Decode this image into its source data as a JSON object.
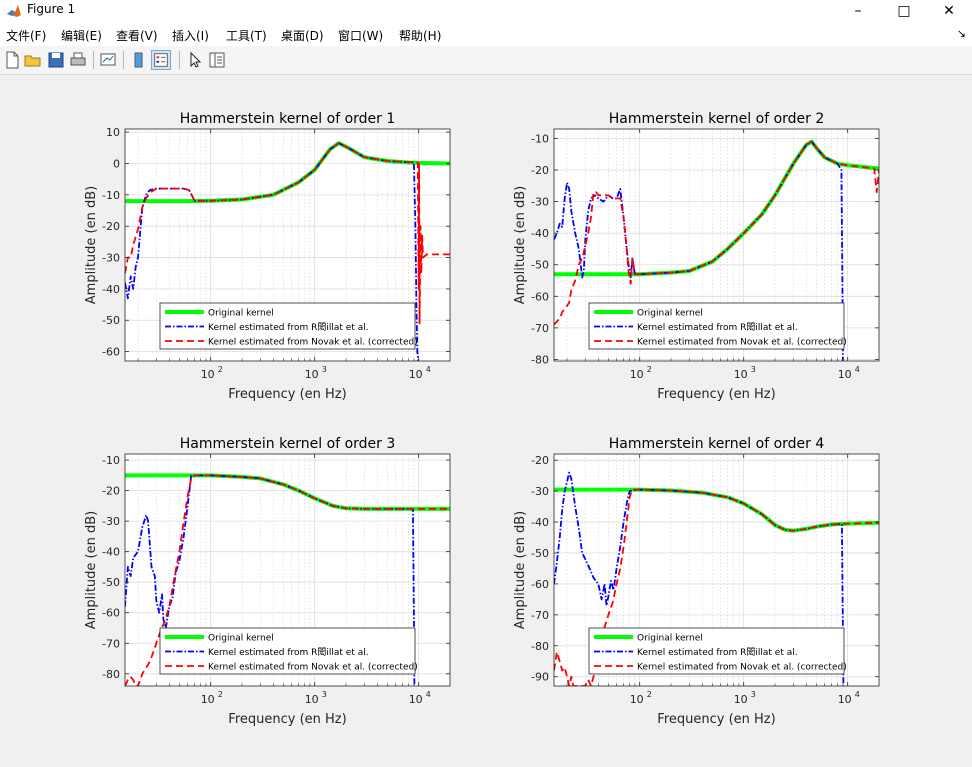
{
  "window": {
    "title": "Figure 1",
    "minimize": "–",
    "maximize": "□",
    "close": "✕"
  },
  "menu": [
    {
      "label": "文件(F)",
      "name": "menu-file"
    },
    {
      "label": "编辑(E)",
      "name": "menu-edit"
    },
    {
      "label": "查看(V)",
      "name": "menu-view"
    },
    {
      "label": "插入(I)",
      "name": "menu-insert"
    },
    {
      "label": "工具(T)",
      "name": "menu-tools"
    },
    {
      "label": "桌面(D)",
      "name": "menu-desktop"
    },
    {
      "label": "窗口(W)",
      "name": "menu-window"
    },
    {
      "label": "帮助(H)",
      "name": "menu-help"
    }
  ],
  "menu_overflow_icon": "chevron-down-icon",
  "toolbar": [
    {
      "name": "new-figure-icon"
    },
    {
      "name": "open-file-icon"
    },
    {
      "name": "save-icon"
    },
    {
      "name": "print-icon"
    },
    {
      "name": "link-plot-icon"
    },
    {
      "name": "colorbar-icon"
    },
    {
      "name": "legend-icon",
      "active": true
    },
    {
      "name": "edit-plot-icon"
    },
    {
      "name": "property-inspector-icon"
    }
  ],
  "colors": {
    "original": "#00ff00",
    "rebillat": "#0000ff",
    "novak": "#ff0000",
    "axes_bg": "#ffffff",
    "figure_bg": "#f0f0f0"
  },
  "legend": {
    "original": "Original kernel",
    "rebillat": "Kernel estimated from R閎illat et al.",
    "novak": "Kernel estimated from Novak et al. (corrected)"
  },
  "chart_data": [
    {
      "type": "line",
      "title": "Hammerstein kernel of order 1",
      "xlabel": "Frequency (en Hz)",
      "ylabel": "Amplitude (en dB)",
      "xscale": "log",
      "xlim": [
        15,
        20000
      ],
      "ylim": [
        -63,
        11
      ],
      "yticks": [
        10,
        0,
        -10,
        -20,
        -30,
        -40,
        -50,
        -60
      ],
      "xtick_labels": [
        {
          "base": "10",
          "exp": "2",
          "value": 100
        },
        {
          "base": "10",
          "exp": "3",
          "value": 1000
        },
        {
          "base": "10",
          "exp": "4",
          "value": 10000
        }
      ],
      "grid": true,
      "legend_position": "bottom-right",
      "series": [
        {
          "name": "Original kernel",
          "style": "green-solid",
          "x": [
            15,
            30,
            60,
            100,
            200,
            400,
            700,
            1000,
            1400,
            1700,
            2100,
            3000,
            5000,
            8000,
            10000,
            20000
          ],
          "y": [
            -12,
            -12,
            -12,
            -11.9,
            -11.5,
            -10,
            -6,
            -2,
            4.5,
            6.5,
            5,
            2,
            0.8,
            0.3,
            0.2,
            0
          ]
        },
        {
          "name": "Kernel estimated from R閎illat et al.",
          "style": "blue-dashdot",
          "x": [
            15,
            16,
            17,
            18,
            19,
            20,
            22,
            24,
            26,
            30,
            40,
            55,
            62,
            70,
            100,
            200,
            400,
            700,
            1000,
            1400,
            1700,
            2100,
            3000,
            5000,
            9000,
            9300,
            9500,
            9700,
            9900
          ],
          "y": [
            -38,
            -43,
            -36,
            -40,
            -33,
            -30,
            -14,
            -10,
            -8.5,
            -8,
            -8,
            -8,
            -8.5,
            -11.9,
            -11.9,
            -11.5,
            -10,
            -6,
            -2,
            4.5,
            6.5,
            5,
            2,
            0.8,
            0.3,
            -20,
            -45,
            -60,
            -63
          ]
        },
        {
          "name": "Kernel estimated from Novak et al. (corrected)",
          "style": "red-dashed",
          "x": [
            15,
            16,
            17,
            18,
            20,
            22,
            24,
            27,
            30,
            40,
            55,
            62,
            70,
            100,
            200,
            400,
            700,
            1000,
            1400,
            1700,
            2100,
            3000,
            5000,
            9800,
            10000,
            10100,
            10200,
            10400,
            10600,
            10800,
            11000,
            12000,
            20000
          ],
          "y": [
            -35,
            -30,
            -30,
            -26,
            -21,
            -14,
            -11,
            -9,
            -8,
            -8,
            -8,
            -8.5,
            -11.9,
            -11.9,
            -11.5,
            -10,
            -6,
            -2,
            4.5,
            6.5,
            5,
            2,
            0.8,
            0.3,
            -40,
            0,
            -51,
            -20,
            -35,
            -23,
            -30,
            -29,
            -29
          ]
        }
      ]
    },
    {
      "type": "line",
      "title": "Hammerstein kernel of order 2",
      "xlabel": "Frequency (en Hz)",
      "ylabel": "Amplitude (en dB)",
      "xscale": "log",
      "xlim": [
        15,
        20000
      ],
      "ylim": [
        -80.5,
        -7
      ],
      "yticks": [
        -10,
        -20,
        -30,
        -40,
        -50,
        -60,
        -70,
        -80
      ],
      "xtick_labels": [
        {
          "base": "10",
          "exp": "2",
          "value": 100
        },
        {
          "base": "10",
          "exp": "3",
          "value": 1000
        },
        {
          "base": "10",
          "exp": "4",
          "value": 10000
        }
      ],
      "grid": true,
      "legend_position": "bottom-right",
      "series": [
        {
          "name": "Original kernel",
          "style": "green-solid",
          "x": [
            15,
            50,
            100,
            200,
            300,
            500,
            700,
            1000,
            1500,
            2000,
            3000,
            4000,
            4500,
            5000,
            6000,
            8000,
            10000,
            20000
          ],
          "y": [
            -53,
            -53,
            -53,
            -52.5,
            -52,
            -49,
            -45,
            -40,
            -34,
            -28,
            -18,
            -12,
            -11,
            -13,
            -16,
            -18,
            -18.5,
            -19.5
          ]
        },
        {
          "name": "Kernel estimated from R閎illat et al.",
          "style": "blue-dashdot",
          "x": [
            15,
            16,
            17,
            18,
            19,
            20,
            21,
            22,
            24,
            26,
            28,
            29,
            30,
            32,
            34,
            37,
            40,
            45,
            50,
            55,
            60,
            65,
            70,
            75,
            78,
            82,
            85,
            90,
            100,
            200,
            300,
            500,
            700,
            1000,
            1500,
            2000,
            3000,
            4000,
            4500,
            5000,
            6000,
            8000,
            8700,
            8900,
            9000
          ],
          "y": [
            -42,
            -40,
            -37,
            -38,
            -29,
            -24,
            -26,
            -33,
            -40,
            -45,
            -54,
            -52,
            -42,
            -33,
            -29,
            -28,
            -29,
            -30,
            -28,
            -29,
            -29,
            -26,
            -35,
            -45,
            -50,
            -54,
            -48,
            -53,
            -53,
            -52.5,
            -52,
            -49,
            -45,
            -40,
            -34,
            -28,
            -18,
            -12,
            -11,
            -13,
            -16,
            -18,
            -20,
            -55,
            -80.5
          ]
        },
        {
          "name": "Kernel estimated from Novak et al. (corrected)",
          "style": "red-dashed",
          "x": [
            15,
            16,
            17,
            18,
            19,
            20,
            21,
            22,
            24,
            26,
            28,
            30,
            32,
            34,
            36,
            38,
            40,
            45,
            50,
            55,
            60,
            65,
            70,
            75,
            78,
            80,
            82,
            85,
            90,
            100,
            200,
            300,
            500,
            700,
            1000,
            1500,
            2000,
            3000,
            4000,
            4500,
            5000,
            6000,
            8000,
            10000,
            18000,
            19000,
            20000
          ],
          "y": [
            -69,
            -68,
            -67,
            -65,
            -64,
            -63,
            -62,
            -58,
            -55,
            -50,
            -48,
            -44,
            -40,
            -35,
            -27,
            -27,
            -28,
            -28,
            -28,
            -29,
            -29,
            -29,
            -35,
            -45,
            -52,
            -54,
            -56,
            -48,
            -53,
            -53,
            -52.5,
            -52,
            -49,
            -45,
            -40,
            -34,
            -28,
            -18,
            -12,
            -11,
            -13,
            -16,
            -18,
            -18.5,
            -19.5,
            -27,
            -20
          ]
        }
      ]
    },
    {
      "type": "line",
      "title": "Hammerstein kernel of order 3",
      "xlabel": "Frequency (en Hz)",
      "ylabel": "Amplitude (en dB)",
      "xscale": "log",
      "xlim": [
        15,
        20000
      ],
      "ylim": [
        -84,
        -8
      ],
      "yticks": [
        -10,
        -20,
        -30,
        -40,
        -50,
        -60,
        -70,
        -80
      ],
      "xtick_labels": [
        {
          "base": "10",
          "exp": "2",
          "value": 100
        },
        {
          "base": "10",
          "exp": "3",
          "value": 1000
        },
        {
          "base": "10",
          "exp": "4",
          "value": 10000
        }
      ],
      "grid": true,
      "legend_position": "bottom-right",
      "series": [
        {
          "name": "Original kernel",
          "style": "green-solid",
          "x": [
            15,
            100,
            200,
            300,
            500,
            700,
            1000,
            1500,
            2000,
            3000,
            5000,
            10000,
            20000
          ],
          "y": [
            -15,
            -15,
            -15.5,
            -16,
            -18,
            -20,
            -22.5,
            -25,
            -25.8,
            -26,
            -26,
            -26,
            -26
          ]
        },
        {
          "name": "Kernel estimated from R閎illat et al.",
          "style": "blue-dashdot",
          "x": [
            15,
            16,
            17,
            18,
            20,
            22,
            24,
            25,
            27,
            29,
            30,
            32,
            34,
            35,
            37,
            40,
            43,
            46,
            50,
            55,
            60,
            65,
            70,
            100,
            200,
            300,
            500,
            700,
            1000,
            1500,
            2000,
            3000,
            5000,
            8800,
            9000,
            9100
          ],
          "y": [
            -58,
            -45,
            -48,
            -42,
            -40,
            -32,
            -28,
            -30,
            -45,
            -48,
            -56,
            -60,
            -54,
            -62,
            -65,
            -58,
            -55,
            -47,
            -43,
            -35,
            -25,
            -15,
            -15,
            -15,
            -15.5,
            -16,
            -18,
            -20,
            -22.5,
            -25,
            -25.8,
            -26,
            -26,
            -26,
            -60,
            -84
          ]
        },
        {
          "name": "Kernel estimated from Novak et al. (corrected)",
          "style": "red-dashed",
          "x": [
            15,
            16,
            17,
            18,
            19,
            20,
            22,
            24,
            26,
            28,
            30,
            33,
            36,
            40,
            45,
            50,
            55,
            60,
            65,
            70,
            100,
            200,
            300,
            500,
            700,
            1000,
            1500,
            2000,
            3000,
            5000,
            10000,
            20000
          ],
          "y": [
            -84,
            -82,
            -81,
            -82,
            -84,
            -84,
            -80,
            -78,
            -76,
            -73,
            -70,
            -66,
            -63,
            -58,
            -48,
            -40,
            -30,
            -22,
            -16,
            -15,
            -15,
            -15.5,
            -16,
            -18,
            -20,
            -22.5,
            -25,
            -25.8,
            -26,
            -26,
            -26,
            -26
          ]
        }
      ]
    },
    {
      "type": "line",
      "title": "Hammerstein kernel of order 4",
      "xlabel": "Frequency (en Hz)",
      "ylabel": "Amplitude (en dB)",
      "xscale": "log",
      "xlim": [
        15,
        20000
      ],
      "ylim": [
        -93,
        -18
      ],
      "yticks": [
        -20,
        -30,
        -40,
        -50,
        -60,
        -70,
        -80,
        -90
      ],
      "xtick_labels": [
        {
          "base": "10",
          "exp": "2",
          "value": 100
        },
        {
          "base": "10",
          "exp": "3",
          "value": 1000
        },
        {
          "base": "10",
          "exp": "4",
          "value": 10000
        }
      ],
      "grid": true,
      "legend_position": "bottom-right",
      "series": [
        {
          "name": "Original kernel",
          "style": "green-solid",
          "x": [
            15,
            100,
            200,
            400,
            700,
            1000,
            1500,
            2000,
            2500,
            3000,
            4000,
            5000,
            7000,
            10000,
            20000
          ],
          "y": [
            -29.5,
            -29.5,
            -29.8,
            -30.5,
            -32,
            -34,
            -37.5,
            -41,
            -42.5,
            -42.8,
            -42.2,
            -41.5,
            -40.8,
            -40.5,
            -40.2
          ]
        },
        {
          "name": "Kernel estimated from R閎illat et al.",
          "style": "blue-dashdot",
          "x": [
            15,
            16,
            17,
            18,
            19,
            20,
            21,
            22,
            24,
            26,
            28,
            30,
            33,
            36,
            40,
            43,
            46,
            48,
            50,
            53,
            56,
            60,
            65,
            70,
            75,
            80,
            100,
            200,
            400,
            700,
            1000,
            1500,
            2000,
            2500,
            3000,
            4000,
            5000,
            7000,
            8800,
            9000,
            9100
          ],
          "y": [
            -60,
            -53,
            -45,
            -36,
            -30,
            -27,
            -24,
            -26,
            -35,
            -42,
            -50,
            -52,
            -55,
            -58,
            -60,
            -65,
            -60,
            -67,
            -64,
            -59,
            -62,
            -55,
            -48,
            -40,
            -34,
            -30,
            -29.5,
            -29.8,
            -30.5,
            -32,
            -34,
            -37.5,
            -41,
            -42.5,
            -42.8,
            -42.2,
            -41.5,
            -40.8,
            -40.6,
            -75,
            -93
          ]
        },
        {
          "name": "Kernel estimated from Novak et al. (corrected)",
          "style": "red-dashed",
          "x": [
            15,
            16,
            17,
            18,
            19,
            20,
            21,
            22,
            23,
            30,
            32,
            34,
            36,
            40,
            45,
            50,
            55,
            60,
            65,
            70,
            75,
            80,
            85,
            100,
            200,
            400,
            700,
            1000,
            1500,
            2000,
            2500,
            3000,
            4000,
            5000,
            7000,
            10000,
            20000
          ],
          "y": [
            -88,
            -82,
            -85,
            -88,
            -87,
            -90,
            -93,
            -90,
            -93,
            -93,
            -91,
            -93,
            -90,
            -80,
            -75,
            -70,
            -66,
            -60,
            -55,
            -48,
            -40,
            -32,
            -29.5,
            -29.5,
            -29.8,
            -30.5,
            -32,
            -34,
            -37.5,
            -41,
            -42.5,
            -42.8,
            -42.2,
            -41.5,
            -40.8,
            -40.5,
            -40.2
          ]
        }
      ]
    }
  ]
}
